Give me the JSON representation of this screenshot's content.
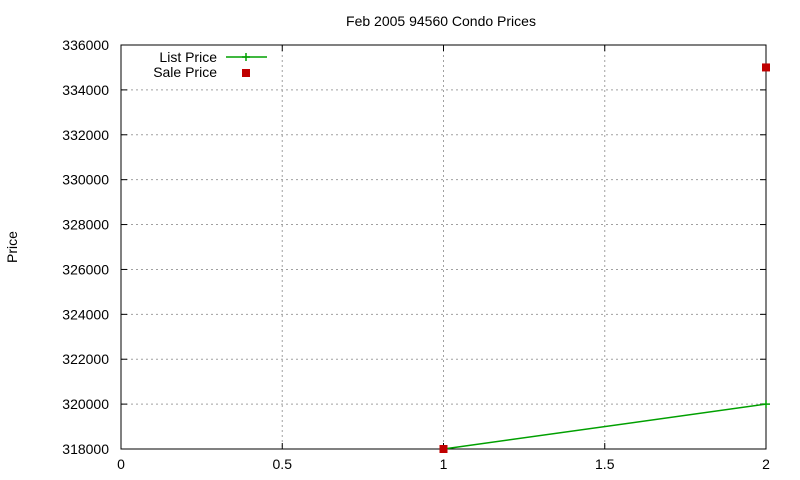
{
  "chart_data": {
    "type": "line",
    "title": "Feb 2005 94560 Condo Prices",
    "xlabel": "",
    "ylabel": "Price",
    "xlim": [
      0,
      2
    ],
    "ylim": [
      318000,
      336000
    ],
    "xticks": [
      0,
      0.5,
      1,
      1.5,
      2
    ],
    "xtick_labels": [
      "0",
      "0.5",
      "1",
      "1.5",
      "2"
    ],
    "yticks": [
      318000,
      320000,
      322000,
      324000,
      326000,
      328000,
      330000,
      332000,
      334000,
      336000
    ],
    "ytick_labels": [
      "318000",
      "320000",
      "322000",
      "324000",
      "326000",
      "328000",
      "330000",
      "332000",
      "334000",
      "336000"
    ],
    "grid": true,
    "legend_position": "top-left",
    "series": [
      {
        "name": "List Price",
        "style": "lines+points",
        "color": "#00a000",
        "marker": "plus",
        "x": [
          1,
          2
        ],
        "y": [
          318000,
          320000
        ]
      },
      {
        "name": "Sale Price",
        "style": "points",
        "color": "#c00000",
        "marker": "square",
        "x": [
          1,
          2
        ],
        "y": [
          318000,
          335000
        ]
      }
    ]
  }
}
